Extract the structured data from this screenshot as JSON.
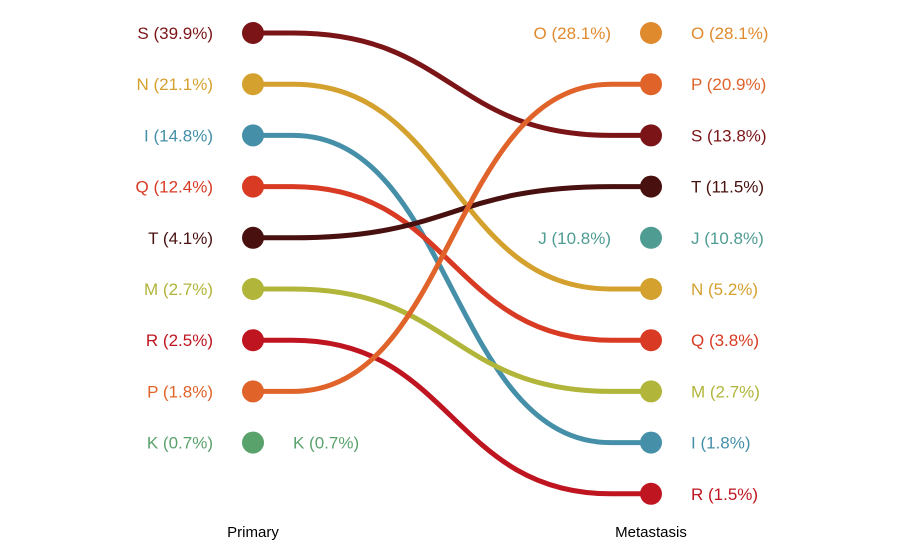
{
  "chart_data": {
    "type": "slope",
    "title": "",
    "xlabel": "",
    "ylabel": "",
    "axes": [
      "Primary",
      "Metastasis"
    ],
    "series": [
      {
        "name": "S",
        "color": "#7b1416",
        "primary": {
          "rank": 1,
          "value": 39.9,
          "label": "S (39.9%)"
        },
        "metastasis": {
          "rank": 3,
          "value": 13.8,
          "label": "S (13.8%)"
        }
      },
      {
        "name": "N",
        "color": "#d4a12e",
        "primary": {
          "rank": 2,
          "value": 21.1,
          "label": "N (21.1%)"
        },
        "metastasis": {
          "rank": 6,
          "value": 5.2,
          "label": "N (5.2%)"
        }
      },
      {
        "name": "I",
        "color": "#4590a8",
        "primary": {
          "rank": 3,
          "value": 14.8,
          "label": "I (14.8%)"
        },
        "metastasis": {
          "rank": 9,
          "value": 1.8,
          "label": "I (1.8%)"
        }
      },
      {
        "name": "Q",
        "color": "#d83a24",
        "primary": {
          "rank": 4,
          "value": 12.4,
          "label": "Q (12.4%)"
        },
        "metastasis": {
          "rank": 7,
          "value": 3.8,
          "label": "Q (3.8%)"
        }
      },
      {
        "name": "T",
        "color": "#48110f",
        "primary": {
          "rank": 5,
          "value": 4.1,
          "label": "T (4.1%)"
        },
        "metastasis": {
          "rank": 4,
          "value": 11.5,
          "label": "T (11.5%)"
        }
      },
      {
        "name": "M",
        "color": "#b1b53a",
        "primary": {
          "rank": 6,
          "value": 2.7,
          "label": "M (2.7%)"
        },
        "metastasis": {
          "rank": 8,
          "value": 2.7,
          "label": "M (2.7%)"
        }
      },
      {
        "name": "R",
        "color": "#bf1520",
        "primary": {
          "rank": 7,
          "value": 2.5,
          "label": "R (2.5%)"
        },
        "metastasis": {
          "rank": 10,
          "value": 1.5,
          "label": "R (1.5%)"
        }
      },
      {
        "name": "P",
        "color": "#e0632a",
        "primary": {
          "rank": 8,
          "value": 1.8,
          "label": "P (1.8%)"
        },
        "metastasis": {
          "rank": 2,
          "value": 20.9,
          "label": "P (20.9%)"
        }
      },
      {
        "name": "K",
        "color": "#5aa26c",
        "primary": {
          "rank": 9,
          "value": 0.7,
          "label": "K (0.7%)"
        },
        "metastasis": null,
        "extra_label": "K (0.7%)"
      },
      {
        "name": "O",
        "color": "#e08a2e",
        "primary": null,
        "metastasis": {
          "rank": 1,
          "value": 28.1,
          "label": "O (28.1%)"
        },
        "extra_label": "O (28.1%)"
      },
      {
        "name": "J",
        "color": "#4f9c92",
        "primary": null,
        "metastasis": {
          "rank": 5,
          "value": 10.8,
          "label": "J (10.8%)"
        },
        "extra_label": "J (10.8%)"
      }
    ]
  }
}
